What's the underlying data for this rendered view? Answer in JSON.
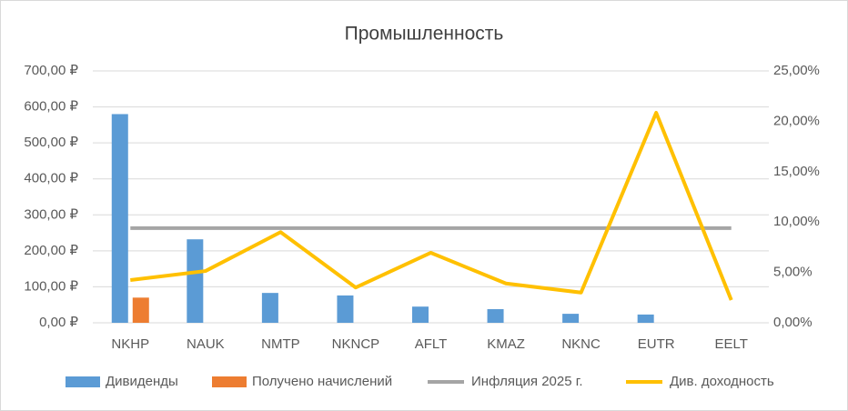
{
  "chart_data": {
    "type": "bar-line",
    "title": "Промышленность",
    "categories": [
      "NKHP",
      "NAUK",
      "NMTP",
      "NKNCP",
      "AFLT",
      "KMAZ",
      "NKNC",
      "EUTR",
      "EELT"
    ],
    "series": [
      {
        "name": "Дивиденды",
        "type": "bar",
        "color": "#5b9bd5",
        "values": [
          580,
          232,
          83,
          76,
          45,
          38,
          25,
          23,
          null
        ]
      },
      {
        "name": "Получено начислений",
        "type": "bar",
        "color": "#ed7d31",
        "values": [
          70,
          null,
          null,
          null,
          null,
          null,
          null,
          null,
          null
        ]
      },
      {
        "name": "Инфляция 2025 г.",
        "type": "line",
        "axis": "y2",
        "color": "#a5a5a5",
        "values": [
          9.4,
          9.4,
          9.4,
          9.4,
          9.4,
          9.4,
          9.4,
          9.4,
          9.4
        ]
      },
      {
        "name": "Див. доходность",
        "type": "line",
        "axis": "y2",
        "color": "#ffc000",
        "values": [
          4.24,
          5.14,
          9.0,
          3.5,
          6.95,
          3.9,
          3.0,
          20.85,
          2.26
        ]
      }
    ],
    "ylim": [
      0,
      700
    ],
    "yticks": [
      {
        "value": 0,
        "label": "0,00 ₽"
      },
      {
        "value": 100,
        "label": "100,00 ₽"
      },
      {
        "value": 200,
        "label": "200,00 ₽"
      },
      {
        "value": 300,
        "label": "300,00 ₽"
      },
      {
        "value": 400,
        "label": "400,00 ₽"
      },
      {
        "value": 500,
        "label": "500,00 ₽"
      },
      {
        "value": 600,
        "label": "600,00 ₽"
      },
      {
        "value": 700,
        "label": "700,00 ₽"
      }
    ],
    "y2lim": [
      0,
      25
    ],
    "y2ticks": [
      {
        "value": 0,
        "label": "0,00%"
      },
      {
        "value": 5,
        "label": "5,00%"
      },
      {
        "value": 10,
        "label": "10,00%"
      },
      {
        "value": 15,
        "label": "15,00%"
      },
      {
        "value": 20,
        "label": "20,00%"
      },
      {
        "value": 25,
        "label": "25,00%"
      }
    ],
    "grid": true,
    "legend": "bottom"
  }
}
